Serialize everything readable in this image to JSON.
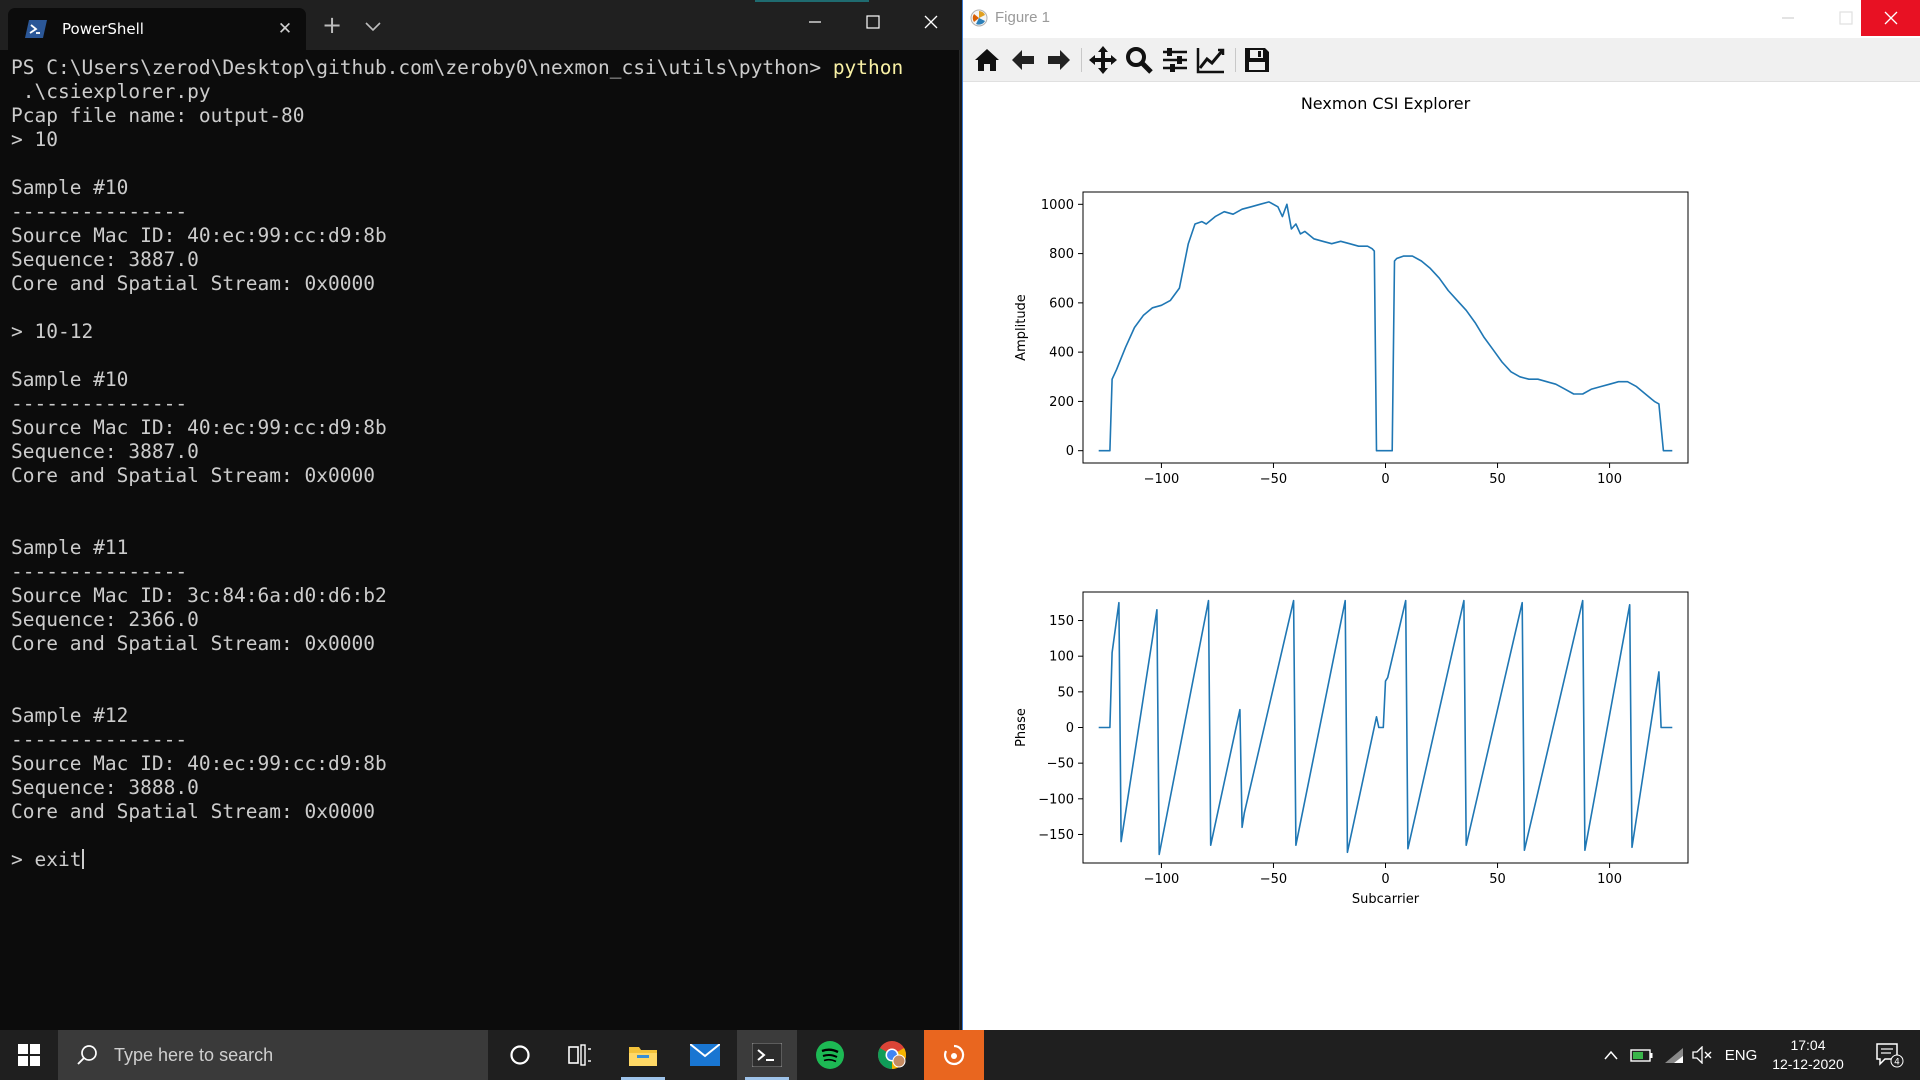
{
  "terminal": {
    "tab_title": "PowerShell",
    "prompt_path": "PS C:\\Users\\zerod\\Desktop\\github.com\\zeroby0\\nexmon_csi\\utils\\python> ",
    "prompt_cmd": "python",
    "lines": [
      " .\\csiexplorer.py",
      "Pcap file name: output-80",
      "> 10",
      "",
      "Sample #10",
      "---------------",
      "Source Mac ID: 40:ec:99:cc:d9:8b",
      "Sequence: 3887.0",
      "Core and Spatial Stream: 0x0000",
      "",
      "> 10-12",
      "",
      "Sample #10",
      "---------------",
      "Source Mac ID: 40:ec:99:cc:d9:8b",
      "Sequence: 3887.0",
      "Core and Spatial Stream: 0x0000",
      "",
      "",
      "Sample #11",
      "---------------",
      "Source Mac ID: 3c:84:6a:d0:d6:b2",
      "Sequence: 2366.0",
      "Core and Spatial Stream: 0x0000",
      "",
      "",
      "Sample #12",
      "---------------",
      "Source Mac ID: 40:ec:99:cc:d9:8b",
      "Sequence: 3888.0",
      "Core and Spatial Stream: 0x0000",
      "",
      "> exit"
    ]
  },
  "figure": {
    "window_title": "Figure 1",
    "toolbar": [
      "home-icon",
      "back-arrow-icon",
      "forward-arrow-icon",
      "pan-icon",
      "zoom-icon",
      "subplots-config-icon",
      "edit-axis-icon",
      "save-icon"
    ]
  },
  "chart_data": [
    {
      "type": "line",
      "title": "Nexmon CSI Explorer",
      "ylabel": "Amplitude",
      "xlabel": "",
      "xlim": [
        -135,
        135
      ],
      "ylim": [
        -50,
        1050
      ],
      "xticks": [
        -100,
        -50,
        0,
        50,
        100
      ],
      "yticks": [
        0,
        200,
        400,
        600,
        800,
        1000
      ],
      "color": "#1f77b4",
      "x": [
        -128,
        -123,
        -122,
        -120,
        -116,
        -112,
        -108,
        -104,
        -100,
        -96,
        -92,
        -88,
        -85,
        -82,
        -80,
        -76,
        -72,
        -68,
        -64,
        -60,
        -56,
        -52,
        -48,
        -46,
        -44,
        -42,
        -40,
        -38,
        -36,
        -32,
        -28,
        -24,
        -20,
        -16,
        -12,
        -8,
        -6,
        -5,
        -4,
        -3,
        3,
        4,
        5,
        8,
        12,
        16,
        20,
        24,
        28,
        32,
        36,
        40,
        44,
        48,
        52,
        56,
        60,
        64,
        68,
        72,
        76,
        80,
        84,
        88,
        92,
        96,
        100,
        104,
        108,
        112,
        116,
        120,
        122,
        124,
        128
      ],
      "values": [
        0,
        0,
        290,
        330,
        420,
        500,
        550,
        580,
        590,
        610,
        660,
        840,
        920,
        930,
        920,
        950,
        970,
        960,
        980,
        990,
        1000,
        1010,
        990,
        950,
        1000,
        900,
        920,
        880,
        890,
        860,
        850,
        840,
        850,
        840,
        830,
        830,
        820,
        810,
        0,
        0,
        0,
        770,
        780,
        790,
        790,
        770,
        740,
        700,
        650,
        610,
        570,
        520,
        460,
        410,
        360,
        320,
        300,
        290,
        290,
        280,
        270,
        250,
        230,
        230,
        250,
        260,
        270,
        280,
        280,
        260,
        230,
        200,
        190,
        0,
        0
      ]
    },
    {
      "type": "line",
      "title": "",
      "ylabel": "Phase",
      "xlabel": "Subcarrier",
      "xlim": [
        -135,
        135
      ],
      "ylim": [
        -190,
        190
      ],
      "xticks": [
        -100,
        -50,
        0,
        50,
        100
      ],
      "yticks": [
        -150,
        -100,
        -50,
        0,
        50,
        100,
        150
      ],
      "color": "#1f77b4",
      "x": [
        -128,
        -123,
        -122,
        -119,
        -118,
        -102,
        -101,
        -79,
        -78,
        -65,
        -64,
        -63,
        -41,
        -40,
        -18,
        -17,
        -4,
        -3,
        -2,
        -1,
        0,
        1,
        9,
        10,
        35,
        36,
        61,
        62,
        88,
        89,
        109,
        110,
        122,
        123,
        128
      ],
      "values": [
        0,
        0,
        105,
        175,
        -160,
        165,
        -178,
        178,
        -165,
        25,
        -140,
        -120,
        178,
        -165,
        178,
        -175,
        15,
        0,
        0,
        0,
        65,
        70,
        178,
        -170,
        178,
        -165,
        175,
        -172,
        178,
        -172,
        172,
        -168,
        78,
        0,
        0
      ]
    }
  ],
  "taskbar": {
    "search_placeholder": "Type here to search",
    "apps": [
      "cortana-icon",
      "task-view-icon",
      "file-explorer-icon",
      "mail-icon",
      "terminal-icon",
      "spotify-icon",
      "chrome-icon",
      "blender-icon"
    ],
    "language": "ENG",
    "time": "17:04",
    "date": "12-12-2020",
    "notification_count": "4"
  }
}
